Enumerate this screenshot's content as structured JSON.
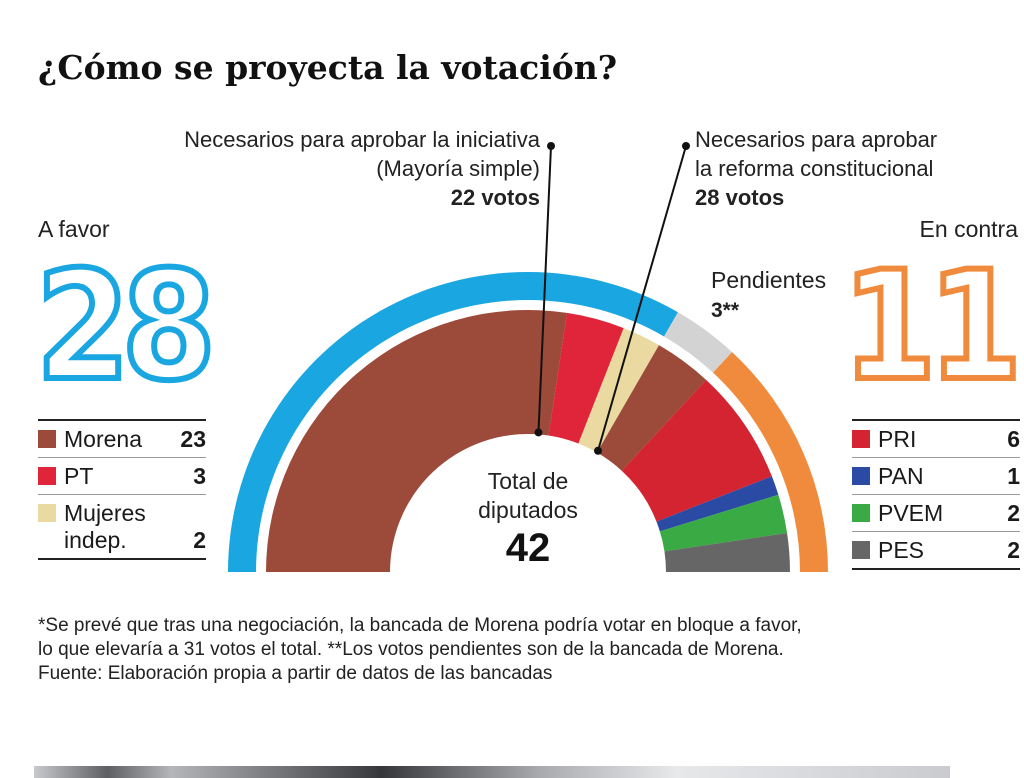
{
  "title": "¿Cómo se proyecta la votación?",
  "note_left": {
    "line1": "Necesarios para aprobar la iniciativa",
    "line2": "(Mayoría simple)",
    "votes": "22 votos"
  },
  "note_right": {
    "line1": "Necesarios para aprobar",
    "line2": "la reforma constitucional",
    "votes": "28 votos"
  },
  "favor": {
    "label": "A favor",
    "total": "28",
    "items": [
      {
        "name": "Morena",
        "value": "23",
        "color": "#9c4a3a"
      },
      {
        "name": "PT",
        "value": "3",
        "color": "#e0243a"
      },
      {
        "name": "Mujeres\nindep.",
        "value": "2",
        "color": "#ead9a0"
      }
    ]
  },
  "contra": {
    "label": "En contra",
    "total": "11",
    "items": [
      {
        "name": "PRI",
        "value": "6",
        "color": "#d42331"
      },
      {
        "name": "PAN",
        "value": "1",
        "color": "#2b4aa4"
      },
      {
        "name": "PVEM",
        "value": "2",
        "color": "#3aaa45"
      },
      {
        "name": "PES",
        "value": "2",
        "color": "#666666"
      }
    ]
  },
  "pending": {
    "label": "Pendientes",
    "value": "3**",
    "color": "#d3d3d3"
  },
  "center": {
    "line1": "Total de",
    "line2": "diputados",
    "total": "42"
  },
  "footnote": {
    "line1": "*Se prevé que tras una negociación, la bancada de Morena podría votar en bloque a favor,",
    "line2": "lo que elevaría a 31 votos el total. **Los votos pendientes son de la bancada de Morena.",
    "line3": "Fuente: Elaboración propia a partir de datos de las bancadas"
  },
  "colors": {
    "favor_ring": "#1aa6e0",
    "contra_ring": "#f08a3c",
    "pending_ring": "#d3d3d3"
  },
  "chart_data": {
    "type": "pie",
    "title": "¿Cómo se proyecta la votación?",
    "total": 42,
    "series": [
      {
        "name": "Morena",
        "value": 23,
        "color": "#9c4a3a",
        "group": "A favor"
      },
      {
        "name": "PT",
        "value": 3,
        "color": "#e0243a",
        "group": "A favor"
      },
      {
        "name": "Mujeres indep.",
        "value": 2,
        "color": "#ead9a0",
        "group": "A favor"
      },
      {
        "name": "Morena",
        "value": 3,
        "color": "#9c4a3a",
        "group": "Pendientes"
      },
      {
        "name": "PRI",
        "value": 6,
        "color": "#d42331",
        "group": "En contra"
      },
      {
        "name": "PAN",
        "value": 1,
        "color": "#2b4aa4",
        "group": "En contra"
      },
      {
        "name": "PVEM",
        "value": 2,
        "color": "#3aaa45",
        "group": "En contra"
      },
      {
        "name": "PES",
        "value": 2,
        "color": "#666666",
        "group": "En contra"
      }
    ],
    "groups": [
      {
        "name": "A favor",
        "value": 28,
        "color": "#1aa6e0"
      },
      {
        "name": "Pendientes",
        "value": 3,
        "color": "#d3d3d3"
      },
      {
        "name": "En contra",
        "value": 11,
        "color": "#f08a3c"
      }
    ],
    "thresholds": [
      {
        "label": "Mayoría simple",
        "value": 22
      },
      {
        "label": "Reforma constitucional",
        "value": 28
      }
    ]
  }
}
